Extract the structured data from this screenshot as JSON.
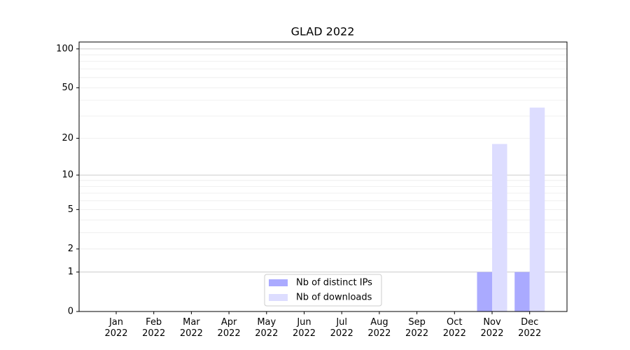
{
  "chart_data": {
    "type": "bar",
    "title": "GLAD 2022",
    "categories": [
      "Jan\n2022",
      "Feb\n2022",
      "Mar\n2022",
      "Apr\n2022",
      "May\n2022",
      "Jun\n2022",
      "Jul\n2022",
      "Aug\n2022",
      "Sep\n2022",
      "Oct\n2022",
      "Nov\n2022",
      "Dec\n2022"
    ],
    "series": [
      {
        "name": "Nb of distinct IPs",
        "color": "#aaaaff",
        "values": [
          0,
          0,
          0,
          0,
          0,
          0,
          0,
          0,
          0,
          0,
          1,
          1
        ]
      },
      {
        "name": "Nb of downloads",
        "color": "#ddddff",
        "values": [
          0,
          0,
          0,
          0,
          0,
          0,
          0,
          0,
          0,
          0,
          18,
          35
        ]
      }
    ],
    "yscale": "log1p",
    "ylim": [
      0,
      113
    ],
    "yticks": [
      0,
      1,
      2,
      5,
      10,
      20,
      50,
      100
    ],
    "major_grid": [
      1,
      10,
      100
    ],
    "minor_grid": [
      2,
      3,
      4,
      5,
      6,
      7,
      8,
      9,
      20,
      30,
      40,
      50,
      60,
      70,
      80,
      90
    ],
    "grid": true,
    "legend": "lower center"
  }
}
